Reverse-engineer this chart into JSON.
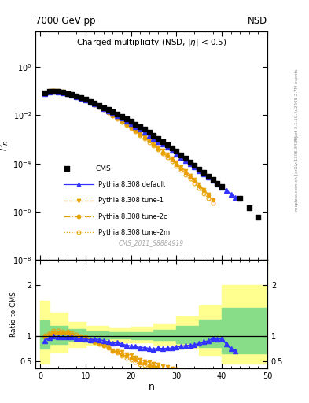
{
  "title_top": "7000 GeV pp",
  "title_right": "NSD",
  "plot_title_main": "Charged multiplicity",
  "plot_title_sub": "(NSD, |\\u03b7| < 0.5)",
  "xlabel": "n",
  "ylabel_main": "P_n",
  "ylabel_ratio": "Ratio to CMS",
  "right_label_top": "Rivet 3.1.10, \\u2265 2.7M events",
  "right_label_bottom": "mcplots.cern.ch [arXiv:1306.3436]",
  "watermark": "CMS_2011_S8884919",
  "xlim": [
    -1,
    50
  ],
  "ylim_main": [
    1e-08,
    30
  ],
  "ylim_ratio": [
    0.35,
    2.5
  ],
  "cms_data_x": [
    1,
    2,
    3,
    4,
    5,
    6,
    7,
    8,
    9,
    10,
    11,
    12,
    13,
    14,
    15,
    16,
    17,
    18,
    19,
    20,
    21,
    22,
    23,
    24,
    25,
    26,
    27,
    28,
    29,
    30,
    31,
    32,
    33,
    34,
    35,
    36,
    37,
    38,
    39,
    40,
    44,
    46,
    48
  ],
  "cms_data_y": [
    0.085,
    0.097,
    0.1,
    0.096,
    0.089,
    0.08,
    0.071,
    0.062,
    0.053,
    0.045,
    0.038,
    0.031,
    0.026,
    0.021,
    0.017,
    0.014,
    0.011,
    0.0088,
    0.007,
    0.0055,
    0.0043,
    0.0034,
    0.0026,
    0.002,
    0.0015,
    0.0011,
    0.00083,
    0.00061,
    0.00045,
    0.00032,
    0.00023,
    0.000165,
    0.000118,
    8.5e-05,
    6e-05,
    4.2e-05,
    3e-05,
    2.1e-05,
    1.5e-05,
    1.1e-05,
    3.5e-06,
    1.5e-06,
    6e-07
  ],
  "pythia_default_x": [
    1,
    2,
    3,
    4,
    5,
    6,
    7,
    8,
    9,
    10,
    11,
    12,
    13,
    14,
    15,
    16,
    17,
    18,
    19,
    20,
    21,
    22,
    23,
    24,
    25,
    26,
    27,
    28,
    29,
    30,
    31,
    32,
    33,
    34,
    35,
    36,
    37,
    38,
    39,
    40,
    41,
    42,
    43
  ],
  "pythia_default_y": [
    0.077,
    0.093,
    0.099,
    0.094,
    0.087,
    0.078,
    0.069,
    0.059,
    0.05,
    0.042,
    0.035,
    0.029,
    0.024,
    0.019,
    0.015,
    0.012,
    0.0095,
    0.0074,
    0.0057,
    0.0044,
    0.0034,
    0.0026,
    0.002,
    0.0015,
    0.0011,
    0.00083,
    0.00062,
    0.00046,
    0.00034,
    0.00025,
    0.000183,
    0.000133,
    9.6e-05,
    7e-05,
    5.1e-05,
    3.7e-05,
    2.7e-05,
    2e-05,
    1.4e-05,
    1.04e-05,
    7.6e-06,
    5.4e-06,
    3.8e-06
  ],
  "tune1_x": [
    1,
    2,
    3,
    4,
    5,
    6,
    7,
    8,
    9,
    10,
    11,
    12,
    13,
    14,
    15,
    16,
    17,
    18,
    19,
    20,
    21,
    22,
    23,
    24,
    25,
    26,
    27,
    28,
    29,
    30,
    31,
    32,
    33,
    34,
    35,
    36,
    37,
    38
  ],
  "tune1_y": [
    0.081,
    0.098,
    0.104,
    0.1,
    0.092,
    0.082,
    0.071,
    0.061,
    0.051,
    0.043,
    0.035,
    0.028,
    0.022,
    0.017,
    0.014,
    0.01,
    0.0078,
    0.006,
    0.0045,
    0.0034,
    0.0025,
    0.0018,
    0.0013,
    0.00095,
    0.00068,
    0.00048,
    0.00034,
    0.000235,
    0.00016,
    0.00011,
    7.4e-05,
    4.9e-05,
    3.2e-05,
    2.1e-05,
    1.35e-05,
    8.5e-06,
    5.3e-06,
    3.2e-06
  ],
  "tune2c_x": [
    1,
    2,
    3,
    4,
    5,
    6,
    7,
    8,
    9,
    10,
    11,
    12,
    13,
    14,
    15,
    16,
    17,
    18,
    19,
    20,
    21,
    22,
    23,
    24,
    25,
    26,
    27,
    28,
    29,
    30,
    31,
    32,
    33,
    34,
    35,
    36,
    37,
    38
  ],
  "tune2c_y": [
    0.083,
    0.1,
    0.106,
    0.102,
    0.094,
    0.084,
    0.073,
    0.062,
    0.052,
    0.043,
    0.035,
    0.027,
    0.022,
    0.017,
    0.013,
    0.0098,
    0.0075,
    0.0056,
    0.0042,
    0.0031,
    0.0023,
    0.0016,
    0.0012,
    0.00085,
    0.0006,
    0.00042,
    0.00029,
    0.0002,
    0.000138,
    9.4e-05,
    6.3e-05,
    4.2e-05,
    2.8e-05,
    1.83e-05,
    1.19e-05,
    7.6e-06,
    4.8e-06,
    3e-06
  ],
  "tune2m_x": [
    1,
    2,
    3,
    4,
    5,
    6,
    7,
    8,
    9,
    10,
    11,
    12,
    13,
    14,
    15,
    16,
    17,
    18,
    19,
    20,
    21,
    22,
    23,
    24,
    25,
    26,
    27,
    28,
    29,
    30,
    31,
    32,
    33,
    34,
    35,
    36,
    37,
    38
  ],
  "tune2m_y": [
    0.086,
    0.103,
    0.11,
    0.106,
    0.097,
    0.087,
    0.075,
    0.064,
    0.053,
    0.044,
    0.035,
    0.028,
    0.022,
    0.017,
    0.013,
    0.0097,
    0.0073,
    0.0054,
    0.0039,
    0.0029,
    0.0021,
    0.0015,
    0.0011,
    0.00077,
    0.00054,
    0.00038,
    0.00026,
    0.000177,
    0.00012,
    8e-05,
    5.3e-05,
    3.5e-05,
    2.27e-05,
    1.46e-05,
    9.3e-06,
    5.8e-06,
    3.6e-06,
    2.2e-06
  ],
  "yellow_band_edges": [
    0,
    2,
    6,
    10,
    15,
    20,
    25,
    30,
    35,
    40,
    50
  ],
  "yellow_band_low": [
    0.45,
    0.68,
    0.78,
    0.83,
    0.87,
    0.87,
    0.83,
    0.75,
    0.62,
    0.45,
    0.35
  ],
  "yellow_band_high": [
    1.7,
    1.45,
    1.28,
    1.2,
    1.15,
    1.18,
    1.25,
    1.38,
    1.6,
    2.0,
    2.5
  ],
  "green_band_edges": [
    0,
    2,
    6,
    10,
    15,
    20,
    25,
    30,
    35,
    40,
    50
  ],
  "green_band_low": [
    0.75,
    0.84,
    0.9,
    0.93,
    0.95,
    0.94,
    0.91,
    0.86,
    0.78,
    0.65,
    0.5
  ],
  "green_band_high": [
    1.3,
    1.2,
    1.13,
    1.09,
    1.07,
    1.08,
    1.12,
    1.2,
    1.32,
    1.55,
    1.9
  ],
  "color_cms": "#000000",
  "color_default": "#3333ff",
  "color_tune1": "#e8a000",
  "color_tune2c": "#e8a000",
  "color_tune2m": "#e8a000",
  "color_green": "#88dd88",
  "color_yellow": "#ffff90"
}
